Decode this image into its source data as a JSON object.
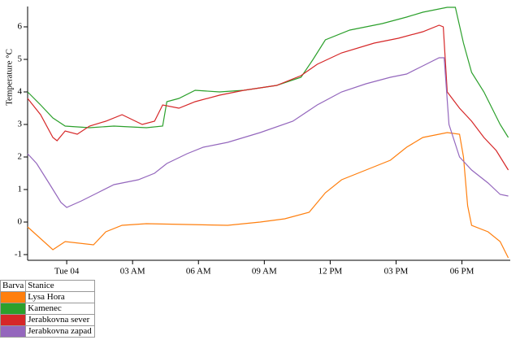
{
  "chart_data": {
    "type": "line",
    "ylabel": "Temperature °C",
    "xlim": [
      -1.78,
      20.2
    ],
    "xticks": [
      {
        "value": 0,
        "label": "Tue 04"
      },
      {
        "value": 3,
        "label": "03 AM"
      },
      {
        "value": 6,
        "label": "06 AM"
      },
      {
        "value": 9,
        "label": "09 AM"
      },
      {
        "value": 12,
        "label": "12 PM"
      },
      {
        "value": 15,
        "label": "03 PM"
      },
      {
        "value": 18,
        "label": "06 PM"
      }
    ],
    "ylim": [
      -1.175,
      6.625
    ],
    "yticks": [
      -1,
      0,
      1,
      2,
      3,
      4,
      5,
      6
    ],
    "grid": false,
    "legend_columns": [
      "Barva",
      "Stanice"
    ],
    "series": [
      {
        "name": "Lysa Hora",
        "color": "#ff7f0e",
        "x": [
          -1.78,
          -0.63,
          -0.07,
          1.22,
          1.78,
          2.52,
          3.63,
          7.33,
          8.81,
          9.93,
          11.04,
          11.78,
          12.52,
          13.63,
          14.74,
          15.48,
          16.22,
          17.33,
          17.89,
          18.07,
          18.26,
          18.44,
          19.19,
          19.74,
          20.11
        ],
        "values": [
          -0.15,
          -0.85,
          -0.6,
          -0.7,
          -0.3,
          -0.1,
          -0.05,
          -0.1,
          0,
          0.1,
          0.3,
          0.9,
          1.3,
          1.6,
          1.9,
          2.3,
          2.6,
          2.75,
          2.7,
          2.0,
          0.5,
          -0.1,
          -0.3,
          -0.6,
          -1.1
        ]
      },
      {
        "name": "Kamenec",
        "color": "#2ca02c",
        "x": [
          -1.78,
          -1.19,
          -0.63,
          -0.07,
          1.04,
          2.15,
          3.63,
          4.37,
          4.56,
          5.11,
          5.85,
          6.96,
          8.07,
          9.56,
          10.67,
          11.22,
          11.78,
          12.89,
          14.37,
          15.48,
          16.22,
          17.33,
          17.7,
          18.07,
          18.44,
          19.0,
          19.37,
          19.74,
          20.11
        ],
        "values": [
          4.0,
          3.6,
          3.2,
          2.95,
          2.9,
          2.95,
          2.9,
          2.95,
          3.7,
          3.8,
          4.05,
          4.0,
          4.05,
          4.2,
          4.45,
          5.0,
          5.6,
          5.9,
          6.1,
          6.3,
          6.45,
          6.6,
          6.6,
          5.5,
          4.6,
          4.0,
          3.5,
          3.0,
          2.6
        ]
      },
      {
        "name": "Jerabkovna sever",
        "color": "#d62728",
        "x": [
          -1.78,
          -1.19,
          -0.63,
          -0.44,
          -0.07,
          0.48,
          1.04,
          1.78,
          2.52,
          3.44,
          4.0,
          4.37,
          5.11,
          5.85,
          6.96,
          8.07,
          9.56,
          10.67,
          11.41,
          12.52,
          14.0,
          15.11,
          16.22,
          16.96,
          17.15,
          17.33,
          17.89,
          18.44,
          19.0,
          19.56,
          20.11
        ],
        "values": [
          3.8,
          3.3,
          2.6,
          2.5,
          2.8,
          2.7,
          2.95,
          3.1,
          3.3,
          3.0,
          3.1,
          3.6,
          3.5,
          3.7,
          3.9,
          4.05,
          4.2,
          4.5,
          4.85,
          5.2,
          5.5,
          5.65,
          5.85,
          6.05,
          6.0,
          4.0,
          3.5,
          3.1,
          2.6,
          2.2,
          1.6
        ]
      },
      {
        "name": "Jerabkovna zapad",
        "color": "#9467bd",
        "x": [
          -1.78,
          -1.37,
          -0.81,
          -0.26,
          0,
          0.67,
          1.41,
          2.15,
          3.26,
          4.0,
          4.56,
          5.48,
          6.22,
          7.33,
          8.81,
          10.3,
          11.41,
          12.52,
          13.63,
          14.74,
          15.48,
          16.22,
          16.96,
          17.19,
          17.41,
          17.89,
          18.44,
          19.19,
          19.74,
          20.11
        ],
        "values": [
          2.1,
          1.8,
          1.2,
          0.6,
          0.45,
          0.65,
          0.9,
          1.15,
          1.3,
          1.5,
          1.8,
          2.1,
          2.3,
          2.45,
          2.75,
          3.1,
          3.6,
          4.0,
          4.25,
          4.45,
          4.55,
          4.8,
          5.05,
          5.05,
          3.0,
          2.0,
          1.6,
          1.2,
          0.85,
          0.8
        ]
      }
    ]
  }
}
